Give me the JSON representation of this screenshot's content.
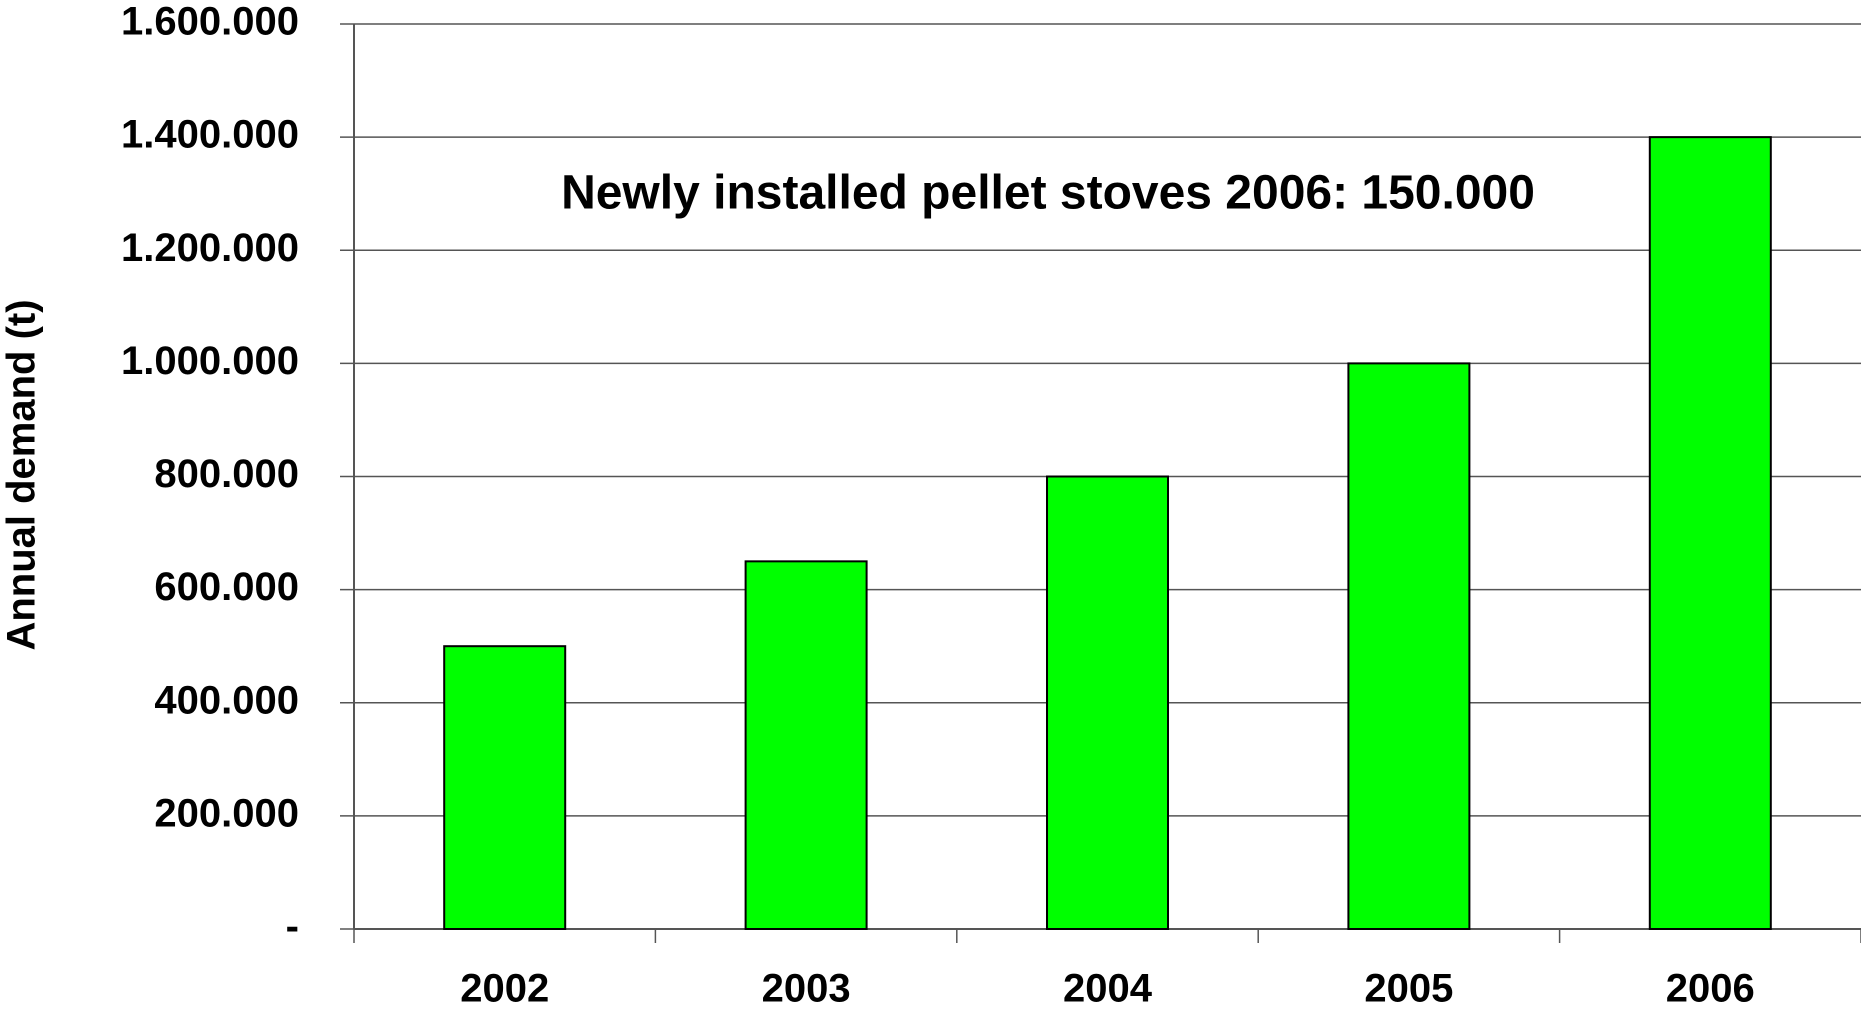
{
  "chart_data": {
    "type": "bar",
    "annotation": "Newly installed pellet stoves 2006: 150.000",
    "y_label": "Annual demand (t)",
    "categories": [
      "2002",
      "2003",
      "2004",
      "2005",
      "2006"
    ],
    "values": [
      500000,
      650000,
      800000,
      1000000,
      1400000
    ],
    "color": "#00ff00",
    "ylim": [
      0,
      1600000
    ],
    "yticks": [
      {
        "value": 0,
        "label": "-"
      },
      {
        "value": 200000,
        "label": "200.000"
      },
      {
        "value": 400000,
        "label": "400.000"
      },
      {
        "value": 600000,
        "label": "600.000"
      },
      {
        "value": 800000,
        "label": "800.000"
      },
      {
        "value": 1000000,
        "label": "1.000.000"
      },
      {
        "value": 1200000,
        "label": "1.200.000"
      },
      {
        "value": 1400000,
        "label": "1.400.000"
      },
      {
        "value": 1600000,
        "label": "1.600.000"
      }
    ],
    "grid": true
  }
}
